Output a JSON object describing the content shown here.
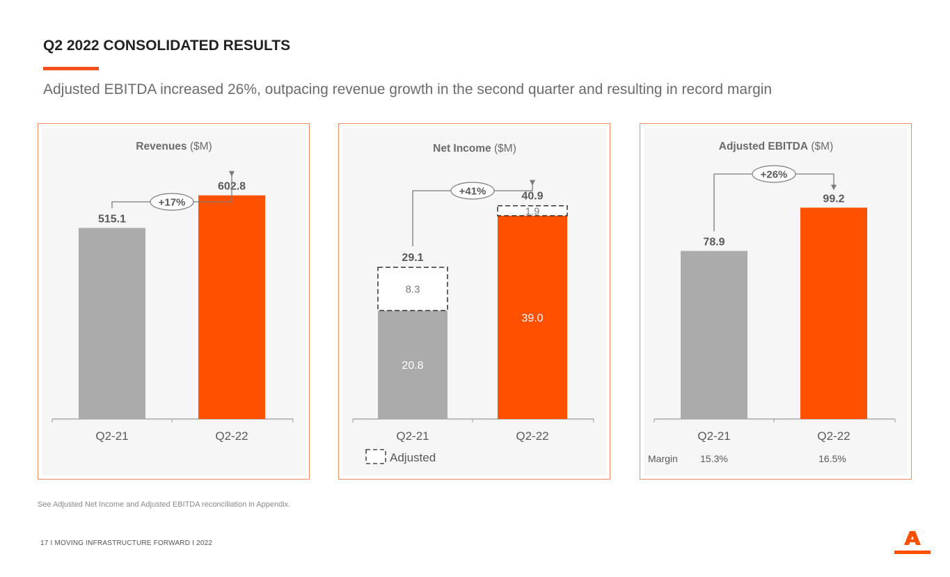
{
  "page": {
    "title": "Q2 2022 CONSOLIDATED RESULTS",
    "subtitle": "Adjusted EBITDA increased 26%, outpacing revenue growth in the second quarter and resulting in record margin",
    "footnote": "See Adjusted Net Income and Adjusted EBITDA reconciliation in Appendix.",
    "footer": "17  I   MOVING INFRASTRUCTURE FORWARD   I   2022"
  },
  "colors": {
    "accent": "#FF5100",
    "gray": "#ABABAB",
    "panel_border": "#F08A60",
    "text": "#595959"
  },
  "chart_data": [
    {
      "type": "bar",
      "title_bold": "Revenues",
      "title_unit": "($M)",
      "categories": [
        "Q2-21",
        "Q2-22"
      ],
      "values": [
        515.1,
        602.8
      ],
      "labels": [
        "515.1",
        "602.8"
      ],
      "growth": "+17%",
      "ylim": [
        0,
        700
      ]
    },
    {
      "type": "stacked-bar",
      "title_bold": "Net Income",
      "title_unit": "($M)",
      "categories": [
        "Q2-21",
        "Q2-22"
      ],
      "series": [
        {
          "name": "Net Income",
          "values": [
            20.8,
            39.0
          ],
          "labels": [
            "20.8",
            "39.0"
          ]
        },
        {
          "name": "Adjusted",
          "values": [
            8.3,
            1.9
          ],
          "labels": [
            "8.3",
            "1.9"
          ]
        }
      ],
      "totals": [
        29.1,
        40.9
      ],
      "total_labels": [
        "29.1",
        "40.9"
      ],
      "growth": "+41%",
      "legend": "Adjusted",
      "ylim": [
        0,
        47
      ]
    },
    {
      "type": "bar",
      "title_bold": "Adjusted EBITDA",
      "title_unit": "($M)",
      "categories": [
        "Q2-21",
        "Q2-22"
      ],
      "values": [
        78.9,
        99.2
      ],
      "labels": [
        "78.9",
        "99.2"
      ],
      "growth": "+26%",
      "margin_label": "Margin",
      "margins": [
        "15.3%",
        "16.5%"
      ],
      "ylim": [
        0,
        115
      ]
    }
  ]
}
